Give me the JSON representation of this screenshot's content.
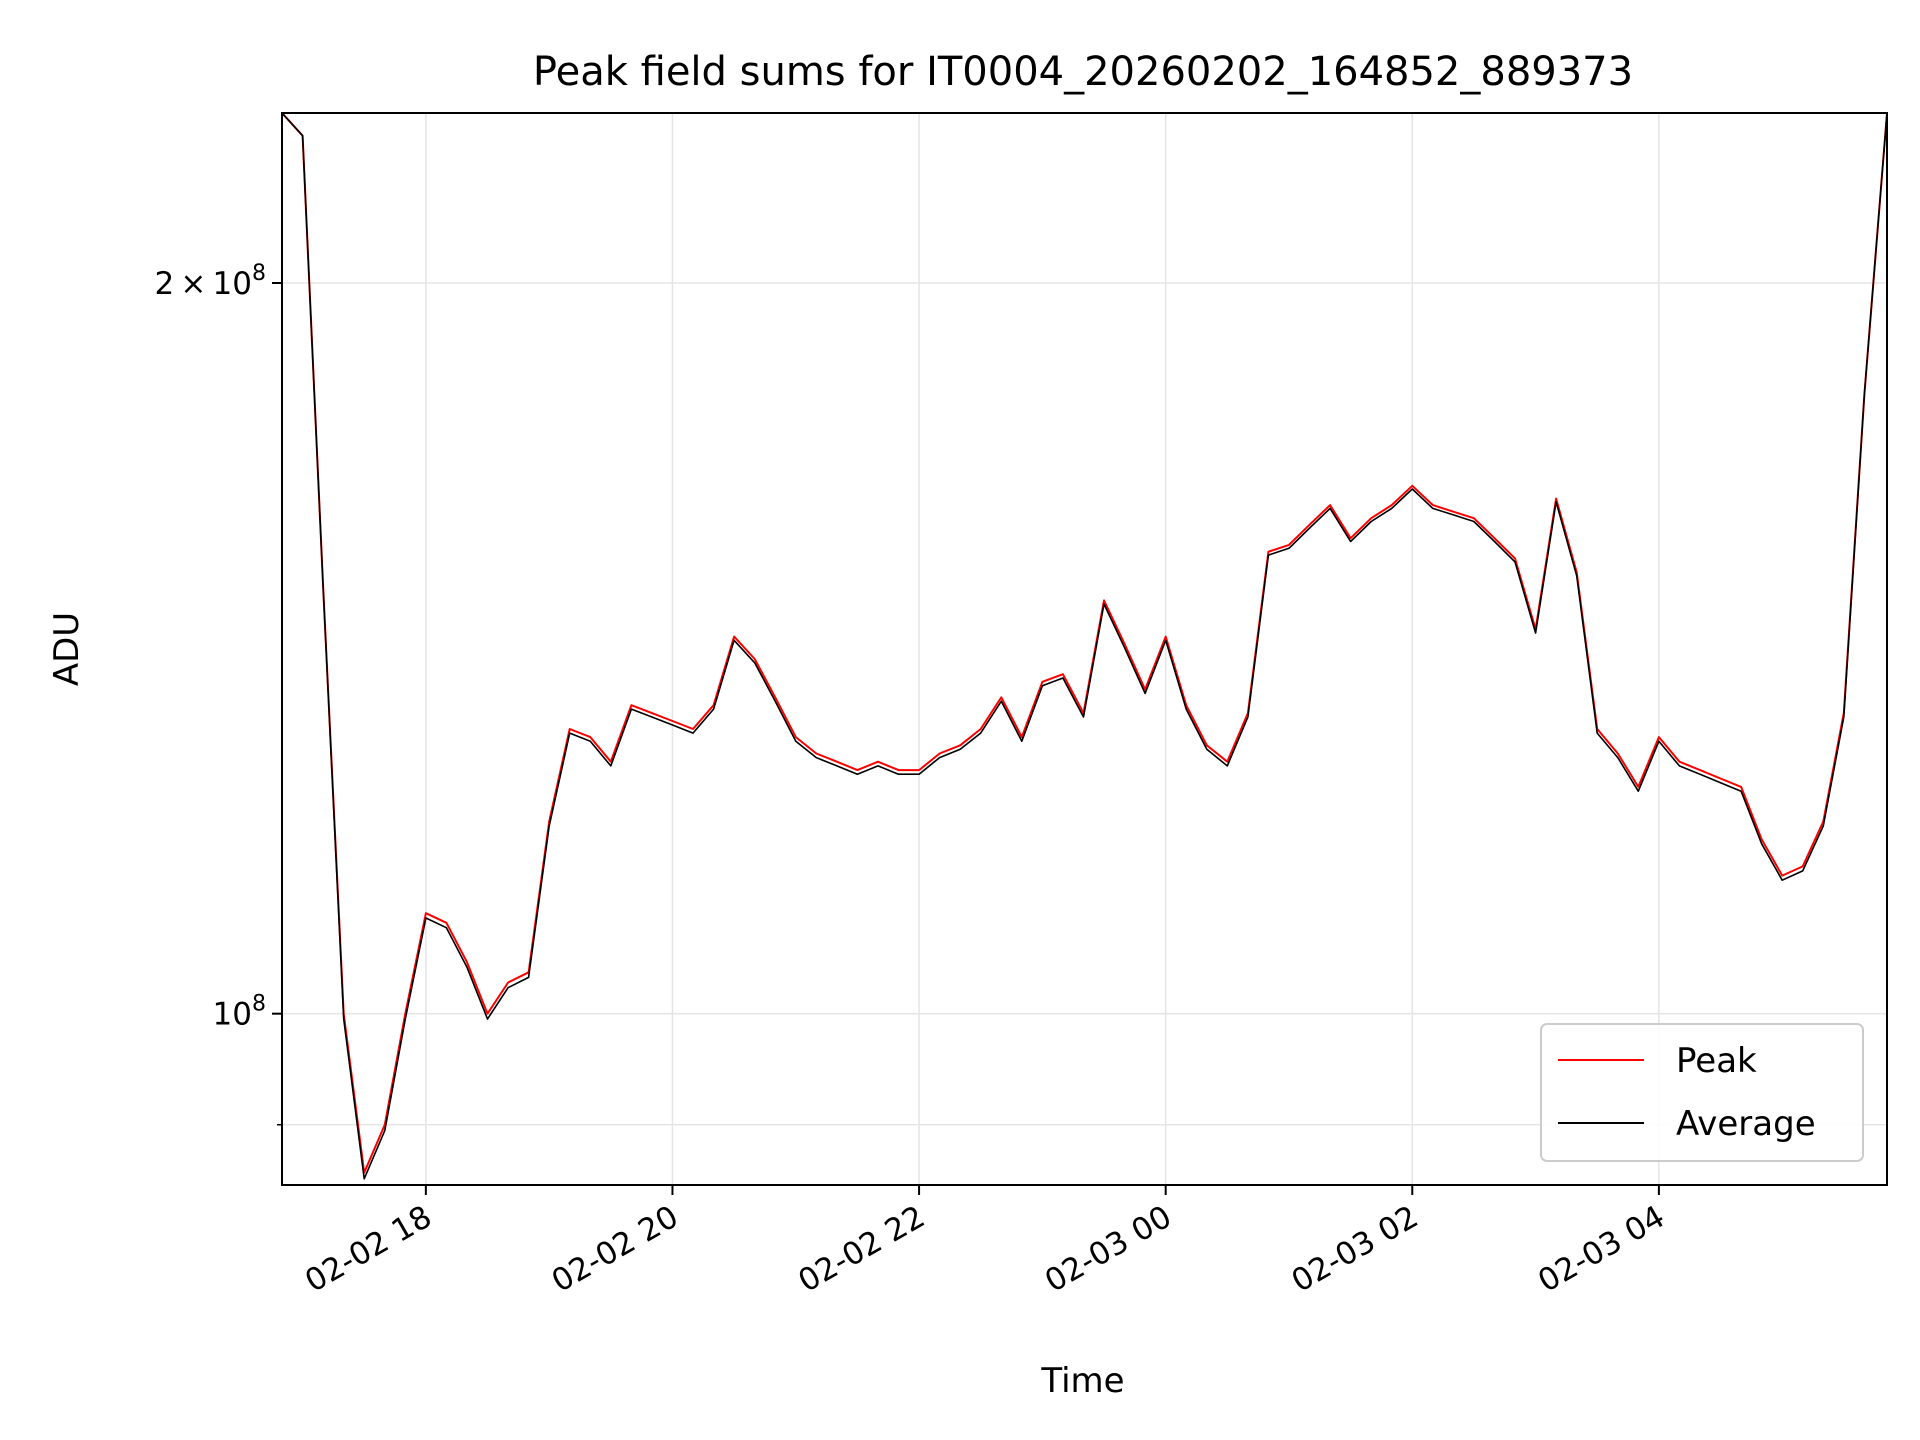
{
  "chart_data": {
    "type": "line",
    "title": "Peak field sums for IT0004_20260202_164852_889373",
    "xlabel": "Time",
    "ylabel": "ADU",
    "x_scale": "time",
    "y_scale": "log",
    "xlim": [
      "2026-02-02 16:50",
      "2026-02-03 05:51"
    ],
    "ylim": [
      85000000,
      235000000
    ],
    "xticks": [
      {
        "value": "2026-02-02 18:00",
        "label": "02-02 18"
      },
      {
        "value": "2026-02-02 20:00",
        "label": "02-02 20"
      },
      {
        "value": "2026-02-02 22:00",
        "label": "02-02 22"
      },
      {
        "value": "2026-02-03 00:00",
        "label": "02-03 00"
      },
      {
        "value": "2026-02-03 02:00",
        "label": "02-03 02"
      },
      {
        "value": "2026-02-03 04:00",
        "label": "02-03 04"
      }
    ],
    "yticks": [
      {
        "value": 200000000,
        "mantissa": "2",
        "exponent": "8"
      },
      {
        "value": 100000000,
        "mantissa": "",
        "exponent": "8"
      }
    ],
    "y_minor_ticks": [
      90000000
    ],
    "grid": true,
    "legend_position": "lower-right",
    "series": [
      {
        "name": "Peak",
        "color": "#ff0000",
        "x": [
          "2026-02-02 16:50",
          "2026-02-02 17:00",
          "2026-02-02 17:10",
          "2026-02-02 17:20",
          "2026-02-02 17:30",
          "2026-02-02 17:40",
          "2026-02-02 17:50",
          "2026-02-02 18:00",
          "2026-02-02 18:10",
          "2026-02-02 18:20",
          "2026-02-02 18:30",
          "2026-02-02 18:40",
          "2026-02-02 18:50",
          "2026-02-02 19:00",
          "2026-02-02 19:10",
          "2026-02-02 19:20",
          "2026-02-02 19:30",
          "2026-02-02 19:40",
          "2026-02-02 19:50",
          "2026-02-02 20:00",
          "2026-02-02 20:10",
          "2026-02-02 20:20",
          "2026-02-02 20:30",
          "2026-02-02 20:40",
          "2026-02-02 20:50",
          "2026-02-02 21:00",
          "2026-02-02 21:10",
          "2026-02-02 21:20",
          "2026-02-02 21:30",
          "2026-02-02 21:40",
          "2026-02-02 21:50",
          "2026-02-02 22:00",
          "2026-02-02 22:10",
          "2026-02-02 22:20",
          "2026-02-02 22:30",
          "2026-02-02 22:40",
          "2026-02-02 22:50",
          "2026-02-02 23:00",
          "2026-02-02 23:10",
          "2026-02-02 23:20",
          "2026-02-02 23:30",
          "2026-02-02 23:40",
          "2026-02-02 23:50",
          "2026-02-03 00:00",
          "2026-02-03 00:10",
          "2026-02-03 00:20",
          "2026-02-03 00:30",
          "2026-02-03 00:40",
          "2026-02-03 00:50",
          "2026-02-03 01:00",
          "2026-02-03 01:10",
          "2026-02-03 01:20",
          "2026-02-03 01:30",
          "2026-02-03 01:40",
          "2026-02-03 01:50",
          "2026-02-03 02:00",
          "2026-02-03 02:10",
          "2026-02-03 02:20",
          "2026-02-03 02:30",
          "2026-02-03 02:40",
          "2026-02-03 02:50",
          "2026-02-03 03:00",
          "2026-02-03 03:10",
          "2026-02-03 03:20",
          "2026-02-03 03:30",
          "2026-02-03 03:40",
          "2026-02-03 03:50",
          "2026-02-03 04:00",
          "2026-02-03 04:10",
          "2026-02-03 04:20",
          "2026-02-03 04:30",
          "2026-02-03 04:40",
          "2026-02-03 04:50",
          "2026-02-03 05:00",
          "2026-02-03 05:10",
          "2026-02-03 05:20",
          "2026-02-03 05:30",
          "2026-02-03 05:40",
          "2026-02-03 05:51"
        ],
        "values": [
          235000000,
          230000000,
          150000000,
          100000000,
          86000000,
          90000000,
          100000000,
          110000000,
          109000000,
          105000000,
          100000000,
          103000000,
          104000000,
          120000000,
          131000000,
          130000000,
          127000000,
          134000000,
          133000000,
          132000000,
          131000000,
          134000000,
          143000000,
          140000000,
          135000000,
          130000000,
          128000000,
          127000000,
          126000000,
          127000000,
          126000000,
          126000000,
          128000000,
          129000000,
          131000000,
          135000000,
          130000000,
          137000000,
          138000000,
          133000000,
          148000000,
          142000000,
          136000000,
          143000000,
          134000000,
          129000000,
          127000000,
          133000000,
          155000000,
          156000000,
          159000000,
          162000000,
          157000000,
          160000000,
          162000000,
          165000000,
          162000000,
          161000000,
          160000000,
          157000000,
          154000000,
          144000000,
          163000000,
          152000000,
          131000000,
          128000000,
          124000000,
          130000000,
          127000000,
          126000000,
          125000000,
          124000000,
          118000000,
          114000000,
          115000000,
          120000000,
          133000000,
          180000000,
          235000000
        ]
      },
      {
        "name": "Average",
        "color": "#000000",
        "x": [
          "2026-02-02 16:50",
          "2026-02-02 17:00",
          "2026-02-02 17:10",
          "2026-02-02 17:20",
          "2026-02-02 17:30",
          "2026-02-02 17:40",
          "2026-02-02 17:50",
          "2026-02-02 18:00",
          "2026-02-02 18:10",
          "2026-02-02 18:20",
          "2026-02-02 18:30",
          "2026-02-02 18:40",
          "2026-02-02 18:50",
          "2026-02-02 19:00",
          "2026-02-02 19:10",
          "2026-02-02 19:20",
          "2026-02-02 19:30",
          "2026-02-02 19:40",
          "2026-02-02 19:50",
          "2026-02-02 20:00",
          "2026-02-02 20:10",
          "2026-02-02 20:20",
          "2026-02-02 20:30",
          "2026-02-02 20:40",
          "2026-02-02 20:50",
          "2026-02-02 21:00",
          "2026-02-02 21:10",
          "2026-02-02 21:20",
          "2026-02-02 21:30",
          "2026-02-02 21:40",
          "2026-02-02 21:50",
          "2026-02-02 22:00",
          "2026-02-02 22:10",
          "2026-02-02 22:20",
          "2026-02-02 22:30",
          "2026-02-02 22:40",
          "2026-02-02 22:50",
          "2026-02-02 23:00",
          "2026-02-02 23:10",
          "2026-02-02 23:20",
          "2026-02-02 23:30",
          "2026-02-02 23:40",
          "2026-02-02 23:50",
          "2026-02-03 00:00",
          "2026-02-03 00:10",
          "2026-02-03 00:20",
          "2026-02-03 00:30",
          "2026-02-03 00:40",
          "2026-02-03 00:50",
          "2026-02-03 01:00",
          "2026-02-03 01:10",
          "2026-02-03 01:20",
          "2026-02-03 01:30",
          "2026-02-03 01:40",
          "2026-02-03 01:50",
          "2026-02-03 02:00",
          "2026-02-03 02:10",
          "2026-02-03 02:20",
          "2026-02-03 02:30",
          "2026-02-03 02:40",
          "2026-02-03 02:50",
          "2026-02-03 03:00",
          "2026-02-03 03:10",
          "2026-02-03 03:20",
          "2026-02-03 03:30",
          "2026-02-03 03:40",
          "2026-02-03 03:50",
          "2026-02-03 04:00",
          "2026-02-03 04:10",
          "2026-02-03 04:20",
          "2026-02-03 04:30",
          "2026-02-03 04:40",
          "2026-02-03 04:50",
          "2026-02-03 05:00",
          "2026-02-03 05:10",
          "2026-02-03 05:20",
          "2026-02-03 05:30",
          "2026-02-03 05:40",
          "2026-02-03 05:51"
        ],
        "values": [
          235000000,
          230000000,
          150000000,
          99500000,
          85500000,
          89500000,
          99500000,
          109500000,
          108500000,
          104500000,
          99500000,
          102500000,
          103500000,
          119500000,
          130500000,
          129500000,
          126500000,
          133500000,
          132500000,
          131500000,
          130500000,
          133500000,
          142500000,
          139500000,
          134500000,
          129500000,
          127500000,
          126500000,
          125500000,
          126500000,
          125500000,
          125500000,
          127500000,
          128500000,
          130500000,
          134500000,
          129500000,
          136500000,
          137500000,
          132500000,
          147500000,
          141500000,
          135500000,
          142500000,
          133500000,
          128500000,
          126500000,
          132500000,
          154500000,
          155500000,
          158500000,
          161500000,
          156500000,
          159500000,
          161500000,
          164500000,
          161500000,
          160500000,
          159500000,
          156500000,
          153500000,
          143500000,
          162500000,
          151500000,
          130500000,
          127500000,
          123500000,
          129500000,
          126500000,
          125500000,
          124500000,
          123500000,
          117500000,
          113500000,
          114500000,
          119500000,
          132500000,
          180000000,
          235000000
        ]
      }
    ]
  }
}
